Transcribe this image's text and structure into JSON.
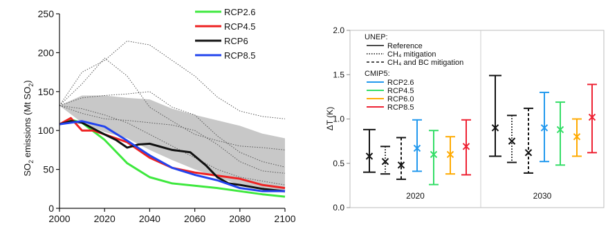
{
  "chart_data": [
    {
      "type": "line",
      "ylabel_main": "SO",
      "ylabel_sub": "2",
      "ylabel_mid": " emissions (Mt SO",
      "ylabel_sub2": "2",
      "ylabel_end": ")",
      "xlim": [
        2000,
        2100
      ],
      "ylim": [
        0,
        250
      ],
      "x_ticks": [
        "2000",
        "2020",
        "2040",
        "2060",
        "2080",
        "2100"
      ],
      "y_ticks": [
        "0",
        "50",
        "100",
        "150",
        "200",
        "250"
      ],
      "legend_placement": "top-right",
      "band": {
        "x": [
          2000,
          2010,
          2020,
          2030,
          2040,
          2050,
          2060,
          2070,
          2080,
          2090,
          2100
        ],
        "upper": [
          132,
          145,
          145,
          142,
          140,
          128,
          120,
          113,
          106,
          96,
          90
        ],
        "lower": [
          132,
          110,
          98,
          90,
          75,
          62,
          50,
          40,
          30,
          24,
          20
        ]
      },
      "dotted_lines": [
        {
          "x": [
            2000,
            2010,
            2020,
            2030,
            2040,
            2050,
            2060,
            2070,
            2080,
            2090,
            2100
          ],
          "y": [
            132,
            175,
            190,
            215,
            210,
            190,
            170,
            143,
            125,
            118,
            115
          ]
        },
        {
          "x": [
            2000,
            2010,
            2020,
            2030,
            2040,
            2050,
            2060,
            2070,
            2080,
            2090,
            2100
          ],
          "y": [
            132,
            160,
            193,
            170,
            130,
            112,
            95,
            87,
            80,
            78,
            75
          ]
        },
        {
          "x": [
            2000,
            2010,
            2020,
            2030,
            2040,
            2050,
            2060,
            2070,
            2080,
            2090,
            2100
          ],
          "y": [
            132,
            142,
            145,
            147,
            150,
            130,
            120,
            93,
            72,
            60,
            53
          ]
        },
        {
          "x": [
            2000,
            2010,
            2020,
            2030,
            2040,
            2050,
            2060,
            2070,
            2080,
            2090,
            2100
          ],
          "y": [
            132,
            122,
            115,
            113,
            110,
            107,
            100,
            82,
            60,
            48,
            45
          ]
        },
        {
          "x": [
            2000,
            2010,
            2020,
            2030,
            2040,
            2050,
            2060,
            2070,
            2080,
            2090,
            2100
          ],
          "y": [
            132,
            128,
            120,
            110,
            95,
            80,
            65,
            50,
            40,
            35,
            30
          ]
        }
      ],
      "series": [
        {
          "name": "RCP2.6",
          "color": "#3ee83e",
          "x": [
            2000,
            2005,
            2010,
            2020,
            2030,
            2040,
            2050,
            2060,
            2070,
            2080,
            2090,
            2100
          ],
          "y": [
            108,
            114,
            110,
            88,
            58,
            40,
            32,
            29,
            26,
            22,
            18,
            15
          ]
        },
        {
          "name": "RCP4.5",
          "color": "#ee2222",
          "x": [
            2000,
            2005,
            2010,
            2015,
            2020,
            2030,
            2040,
            2050,
            2060,
            2070,
            2080,
            2090,
            2100
          ],
          "y": [
            108,
            116,
            100,
            100,
            95,
            85,
            65,
            52,
            46,
            42,
            38,
            30,
            26
          ]
        },
        {
          "name": "RCP6",
          "color": "#111111",
          "x": [
            2000,
            2005,
            2010,
            2020,
            2025,
            2030,
            2035,
            2040,
            2050,
            2058,
            2065,
            2070,
            2075,
            2080,
            2090,
            2100
          ],
          "y": [
            108,
            112,
            110,
            95,
            88,
            78,
            82,
            83,
            75,
            72,
            55,
            40,
            32,
            30,
            25,
            22
          ]
        },
        {
          "name": "RCP8.5",
          "color": "#2244ee",
          "x": [
            2000,
            2010,
            2020,
            2030,
            2040,
            2050,
            2060,
            2070,
            2080,
            2090,
            2100
          ],
          "y": [
            108,
            112,
            105,
            87,
            68,
            52,
            43,
            36,
            26,
            22,
            22
          ]
        }
      ]
    },
    {
      "type": "errorbar",
      "ylabel": "ΔT (K)",
      "ylim": [
        0.0,
        2.0
      ],
      "y_ticks": [
        "0.0",
        "0.5",
        "1.0",
        "1.5",
        "2.0"
      ],
      "groups": [
        "2020",
        "2030"
      ],
      "legend_placement": "top-left",
      "legend": {
        "unep_title": "UNEP:",
        "unep_items": [
          {
            "label": "Reference",
            "style": "solid"
          },
          {
            "label": "CH₄ mitigation",
            "style": "dotted"
          },
          {
            "label": "CH₄ and BC mitigation",
            "style": "dashed"
          }
        ],
        "cmip_title": "CMIP5:",
        "cmip_items": [
          {
            "label": "RCP2.6",
            "color": "#2299ee"
          },
          {
            "label": "RCP4.5",
            "color": "#33dd66"
          },
          {
            "label": "RCP6.0",
            "color": "#ffaa00"
          },
          {
            "label": "RCP8.5",
            "color": "#ee2233"
          }
        ]
      },
      "bars": [
        {
          "group": "2020",
          "label": "Reference",
          "color": "#111111",
          "style": "solid",
          "mid": 0.58,
          "low": 0.4,
          "high": 0.88
        },
        {
          "group": "2020",
          "label": "CH₄ mitigation",
          "color": "#111111",
          "style": "dotted",
          "mid": 0.52,
          "low": 0.38,
          "high": 0.69
        },
        {
          "group": "2020",
          "label": "CH₄ and BC mitigation",
          "color": "#111111",
          "style": "dashed",
          "mid": 0.48,
          "low": 0.32,
          "high": 0.79
        },
        {
          "group": "2020",
          "label": "RCP2.6",
          "color": "#2299ee",
          "style": "solid",
          "mid": 0.67,
          "low": 0.41,
          "high": 0.99
        },
        {
          "group": "2020",
          "label": "RCP4.5",
          "color": "#33dd66",
          "style": "solid",
          "mid": 0.6,
          "low": 0.26,
          "high": 0.87
        },
        {
          "group": "2020",
          "label": "RCP6.0",
          "color": "#ffaa00",
          "style": "solid",
          "mid": 0.6,
          "low": 0.38,
          "high": 0.8
        },
        {
          "group": "2020",
          "label": "RCP8.5",
          "color": "#ee2233",
          "style": "solid",
          "mid": 0.69,
          "low": 0.37,
          "high": 0.99
        },
        {
          "group": "2030",
          "label": "Reference",
          "color": "#111111",
          "style": "solid",
          "mid": 0.9,
          "low": 0.58,
          "high": 1.49
        },
        {
          "group": "2030",
          "label": "CH₄ mitigation",
          "color": "#111111",
          "style": "dotted",
          "mid": 0.75,
          "low": 0.51,
          "high": 1.04
        },
        {
          "group": "2030",
          "label": "CH₄ and BC mitigation",
          "color": "#111111",
          "style": "dashed",
          "mid": 0.62,
          "low": 0.39,
          "high": 1.12
        },
        {
          "group": "2030",
          "label": "RCP2.6",
          "color": "#2299ee",
          "style": "solid",
          "mid": 0.9,
          "low": 0.52,
          "high": 1.3
        },
        {
          "group": "2030",
          "label": "RCP4.5",
          "color": "#33dd66",
          "style": "solid",
          "mid": 0.88,
          "low": 0.48,
          "high": 1.19
        },
        {
          "group": "2030",
          "label": "RCP6.0",
          "color": "#ffaa00",
          "style": "solid",
          "mid": 0.8,
          "low": 0.58,
          "high": 1.0
        },
        {
          "group": "2030",
          "label": "RCP8.5",
          "color": "#ee2233",
          "style": "solid",
          "mid": 1.02,
          "low": 0.62,
          "high": 1.39
        }
      ]
    }
  ]
}
